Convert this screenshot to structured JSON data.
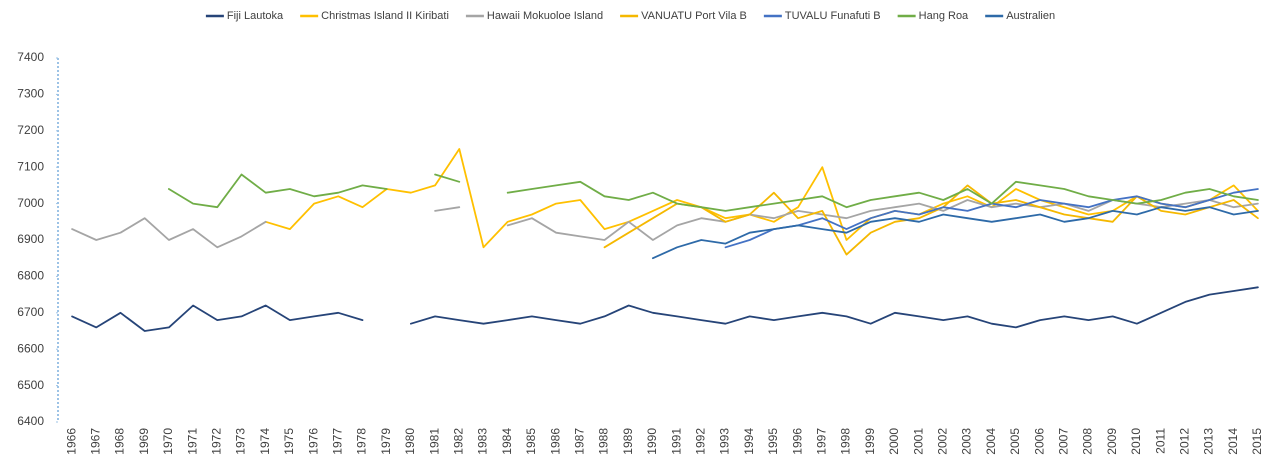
{
  "chart_data": {
    "type": "line",
    "categories": [
      "1966",
      "1967",
      "1968",
      "1969",
      "1970",
      "1971",
      "1972",
      "1973",
      "1974",
      "1975",
      "1976",
      "1977",
      "1978",
      "1979",
      "1980",
      "1981",
      "1982",
      "1983",
      "1984",
      "1985",
      "1986",
      "1987",
      "1988",
      "1989",
      "1990",
      "1991",
      "1992",
      "1993",
      "1994",
      "1995",
      "1996",
      "1997",
      "1998",
      "1999",
      "2000",
      "2001",
      "2002",
      "2003",
      "2004",
      "2005",
      "2006",
      "2007",
      "2008",
      "2009",
      "2010",
      "2011",
      "2012",
      "2013",
      "2014",
      "2015"
    ],
    "series": [
      {
        "name": "Fiji Lautoka",
        "color": "#264478",
        "values": [
          6690,
          6660,
          6700,
          6650,
          6660,
          6720,
          6680,
          6690,
          6720,
          6680,
          6690,
          6700,
          6680,
          null,
          6670,
          6690,
          6680,
          6670,
          6680,
          6690,
          6680,
          6670,
          6690,
          6720,
          6700,
          6690,
          6680,
          6670,
          6690,
          6680,
          6690,
          6700,
          6690,
          6670,
          6700,
          6690,
          6680,
          6690,
          6670,
          6660,
          6680,
          6690,
          6680,
          6690,
          6670,
          6700,
          6730,
          6750,
          6760,
          6770
        ]
      },
      {
        "name": "Christmas Island II  Kiribati",
        "color": "#ffc000",
        "values": [
          null,
          null,
          null,
          null,
          null,
          null,
          null,
          null,
          6950,
          6930,
          7000,
          7020,
          6990,
          7040,
          7030,
          7050,
          7150,
          6880,
          6950,
          6970,
          7000,
          7010,
          6930,
          6950,
          6980,
          7010,
          6990,
          6960,
          6970,
          6950,
          6990,
          7100,
          6900,
          6960,
          6980,
          6970,
          7000,
          7020,
          6990,
          7040,
          7010,
          6990,
          6970,
          6980,
          7020,
          7000,
          6990,
          7010,
          7050,
          6980
        ]
      },
      {
        "name": "Hawaii Mokuoloe Island",
        "color": "#a5a5a5",
        "values": [
          6930,
          6900,
          6920,
          6960,
          6900,
          6930,
          6880,
          6910,
          6950,
          null,
          null,
          null,
          null,
          null,
          null,
          6980,
          6990,
          null,
          6940,
          6960,
          6920,
          6910,
          6900,
          6950,
          6900,
          6940,
          6960,
          6950,
          6970,
          6960,
          6980,
          6970,
          6960,
          6980,
          6990,
          7000,
          6980,
          7010,
          6990,
          7000,
          6990,
          7000,
          6980,
          7010,
          7000,
          6990,
          7000,
          7010,
          6990,
          7000
        ]
      },
      {
        "name": "VANUATU Port Vila B",
        "color": "#f5b800",
        "values": [
          null,
          null,
          null,
          null,
          null,
          null,
          null,
          null,
          null,
          null,
          null,
          null,
          null,
          null,
          null,
          null,
          null,
          null,
          null,
          null,
          null,
          null,
          6880,
          6920,
          6960,
          7000,
          6990,
          6950,
          6970,
          7030,
          6960,
          6980,
          6860,
          6920,
          6950,
          6960,
          6990,
          7050,
          7000,
          7010,
          6990,
          6970,
          6960,
          6950,
          7020,
          6980,
          6970,
          6990,
          7010,
          6960
        ]
      },
      {
        "name": "TUVALU Funafuti B",
        "color": "#4472c4",
        "values": [
          null,
          null,
          null,
          null,
          null,
          null,
          null,
          null,
          null,
          null,
          null,
          null,
          null,
          null,
          null,
          null,
          null,
          null,
          null,
          null,
          null,
          null,
          null,
          null,
          null,
          null,
          null,
          6880,
          6900,
          6930,
          6940,
          6960,
          6930,
          6960,
          6980,
          6970,
          6990,
          6980,
          7000,
          6990,
          7010,
          7000,
          6990,
          7010,
          7020,
          7000,
          6990,
          7010,
          7030,
          7040
        ]
      },
      {
        "name": "Hang Roa",
        "color": "#70ad47",
        "values": [
          null,
          null,
          null,
          null,
          7040,
          7000,
          6990,
          7080,
          7030,
          7040,
          7020,
          7030,
          7050,
          7040,
          null,
          7080,
          7060,
          null,
          7030,
          7040,
          7050,
          7060,
          7020,
          7010,
          7030,
          7000,
          6990,
          6980,
          6990,
          7000,
          7010,
          7020,
          6990,
          7010,
          7020,
          7030,
          7010,
          7040,
          7000,
          7060,
          7050,
          7040,
          7020,
          7010,
          7000,
          7010,
          7030,
          7040,
          7020,
          7010
        ]
      },
      {
        "name": "Australien",
        "color": "#2e6aa8",
        "values": [
          null,
          null,
          null,
          null,
          null,
          null,
          null,
          null,
          null,
          null,
          null,
          null,
          null,
          null,
          null,
          null,
          null,
          null,
          null,
          null,
          null,
          null,
          null,
          null,
          6850,
          6880,
          6900,
          6890,
          6920,
          6930,
          6940,
          6930,
          6920,
          6950,
          6960,
          6950,
          6970,
          6960,
          6950,
          6960,
          6970,
          6950,
          6960,
          6980,
          6970,
          6990,
          6980,
          6990,
          6970,
          6980
        ]
      }
    ],
    "ylim": [
      6400,
      7400
    ],
    "yticks": [
      6400,
      6500,
      6600,
      6700,
      6800,
      6900,
      7000,
      7100,
      7200,
      7300,
      7400
    ],
    "grid": false
  }
}
